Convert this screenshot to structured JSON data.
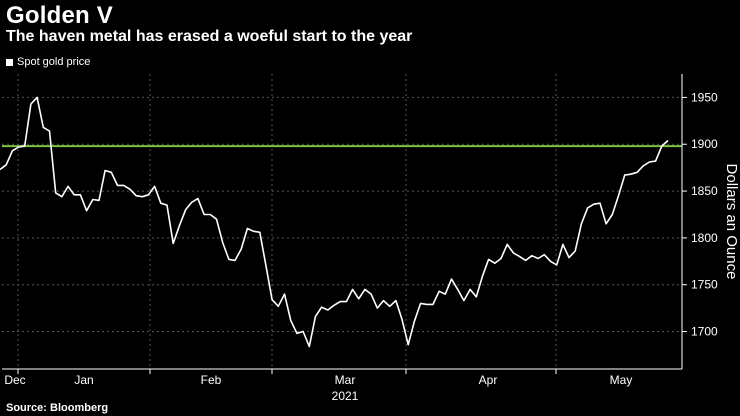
{
  "title": "Golden V",
  "subtitle": "The haven metal has erased a woeful start to the year",
  "source": "Source: Bloomberg",
  "colors": {
    "background": "#000000",
    "line": "#ffffff",
    "reference": "#7cc242",
    "grid": "#555555"
  },
  "chart_data": {
    "type": "line",
    "title": "Golden V",
    "subtitle": "The haven metal has erased a woeful start to the year",
    "ylabel": "Dollars an Ounce",
    "xlabel": "",
    "year_label": "2021",
    "ylim": [
      1660,
      1975
    ],
    "yticks": [
      1700,
      1750,
      1800,
      1850,
      1900,
      1950
    ],
    "xticks": [
      "Dec",
      "Jan",
      "Feb",
      "Mar",
      "Apr",
      "May"
    ],
    "grid": true,
    "legend_position": "top-left",
    "reference_line": {
      "value": 1898,
      "color": "#7cc242"
    },
    "series": [
      {
        "name": "Spot gold price",
        "values": [
          1873,
          1878,
          1893,
          1897,
          1898,
          1943,
          1950,
          1918,
          1914,
          1848,
          1844,
          1855,
          1846,
          1846,
          1829,
          1841,
          1840,
          1872,
          1870,
          1856,
          1856,
          1852,
          1845,
          1844,
          1846,
          1855,
          1837,
          1835,
          1794,
          1813,
          1830,
          1838,
          1842,
          1825,
          1825,
          1820,
          1795,
          1777,
          1776,
          1788,
          1810,
          1807,
          1806,
          1770,
          1734,
          1727,
          1740,
          1712,
          1698,
          1700,
          1684,
          1716,
          1726,
          1723,
          1728,
          1732,
          1732,
          1745,
          1735,
          1745,
          1740,
          1725,
          1733,
          1727,
          1733,
          1713,
          1686,
          1711,
          1730,
          1729,
          1729,
          1743,
          1740,
          1756,
          1745,
          1733,
          1745,
          1737,
          1759,
          1777,
          1773,
          1778,
          1793,
          1784,
          1780,
          1776,
          1781,
          1778,
          1782,
          1775,
          1771,
          1793,
          1779,
          1786,
          1815,
          1832,
          1836,
          1837,
          1815,
          1825,
          1845,
          1867,
          1868,
          1870,
          1877,
          1881,
          1882,
          1898,
          1904
        ]
      }
    ]
  }
}
